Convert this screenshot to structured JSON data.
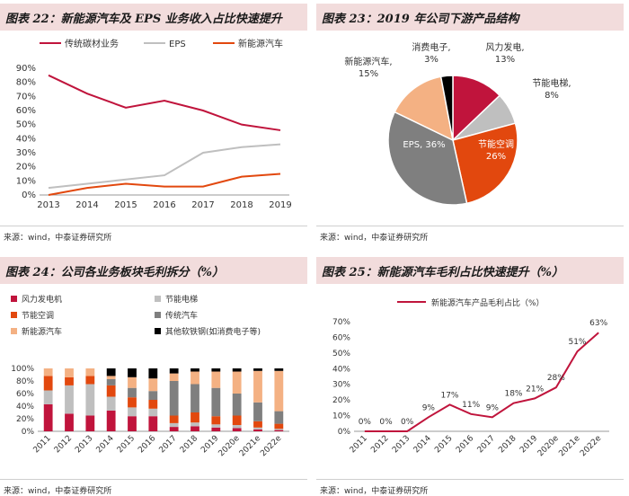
{
  "source_text": "来源：wind，中泰证券研究所",
  "charts": [
    {
      "title": "图表 22：新能源汽车及 EPS 业务收入占比快速提升",
      "chart_data": {
        "type": "line",
        "categories": [
          "2013",
          "2014",
          "2015",
          "2016",
          "2017",
          "2018",
          "2019"
        ],
        "ylim": [
          0,
          90
        ],
        "yticks": [
          "0%",
          "10%",
          "20%",
          "30%",
          "40%",
          "50%",
          "60%",
          "70%",
          "80%",
          "90%"
        ],
        "legend_position": "top",
        "series": [
          {
            "name": "传统碳材业务",
            "color": "#c0143c",
            "values": [
              85,
              72,
              62,
              67,
              60,
              50,
              46
            ]
          },
          {
            "name": "EPS",
            "color": "#bfbfbf",
            "values": [
              5,
              8,
              11,
              14,
              30,
              34,
              36
            ]
          },
          {
            "name": "新能源汽车",
            "color": "#e2480e",
            "values": [
              0,
              5,
              8,
              6,
              6,
              13,
              15
            ]
          }
        ]
      }
    },
    {
      "title": "图表 23：2019 年公司下游产品结构",
      "chart_data": {
        "type": "pie",
        "slices": [
          {
            "label": "风力发电",
            "value": 13,
            "display": "13%",
            "color": "#c0143c"
          },
          {
            "label": "节能电梯",
            "value": 8,
            "display": "8%",
            "color": "#bfbfbf"
          },
          {
            "label": "节能空调",
            "value": 26,
            "display": "26%",
            "color": "#e2480e"
          },
          {
            "label": "EPS",
            "value": 36,
            "display": "36%",
            "color": "#7f7f7f"
          },
          {
            "label": "新能源汽车",
            "value": 15,
            "display": "15%",
            "color": "#f4b183"
          },
          {
            "label": "消费电子",
            "value": 3,
            "display": "3%",
            "color": "#000000"
          }
        ]
      }
    },
    {
      "title": "图表 24：公司各业务板块毛利拆分（%）",
      "chart_data": {
        "type": "bar",
        "stacked": true,
        "categories": [
          "2011",
          "2012",
          "2013",
          "2014",
          "2015",
          "2016",
          "2017",
          "2018",
          "2019",
          "2020e",
          "2021e",
          "2022e"
        ],
        "ylim": [
          0,
          100
        ],
        "yticks": [
          "0%",
          "20%",
          "40%",
          "60%",
          "80%",
          "100%"
        ],
        "legend_position": "top",
        "series": [
          {
            "name": "风力发电机",
            "color": "#c0143c",
            "values": [
              43,
              28,
              25,
              33,
              24,
              24,
              7,
              8,
              6,
              5,
              3,
              2
            ]
          },
          {
            "name": "节能电梯",
            "color": "#bfbfbf",
            "values": [
              22,
              45,
              50,
              22,
              14,
              12,
              6,
              6,
              5,
              5,
              3,
              2
            ]
          },
          {
            "name": "节能空调",
            "color": "#e2480e",
            "values": [
              23,
              13,
              13,
              18,
              16,
              14,
              12,
              16,
              13,
              15,
              10,
              8
            ]
          },
          {
            "name": "传统汽车",
            "color": "#7f7f7f",
            "values": [
              0,
              0,
              0,
              10,
              15,
              14,
              55,
              45,
              45,
              35,
              30,
              20
            ]
          },
          {
            "name": "新能源汽车",
            "color": "#f4b183",
            "values": [
              12,
              14,
              12,
              5,
              17,
              20,
              12,
              20,
              26,
              35,
              50,
              64
            ]
          },
          {
            "name": "其他软铁钢(如消费电子等)",
            "color": "#000000",
            "values": [
              0,
              0,
              0,
              12,
              14,
              16,
              8,
              5,
              5,
              5,
              4,
              4
            ]
          }
        ]
      }
    },
    {
      "title": "图表 25：新能源汽车毛利占比快速提升（%）",
      "chart_data": {
        "type": "line",
        "categories": [
          "2011",
          "2012",
          "2013",
          "2014",
          "2015",
          "2016",
          "2017",
          "2018",
          "2019",
          "2020e",
          "2021e",
          "2022e"
        ],
        "ylim": [
          0,
          70
        ],
        "yticks": [
          "0%",
          "10%",
          "20%",
          "30%",
          "40%",
          "50%",
          "60%",
          "70%"
        ],
        "legend_position": "top",
        "series": [
          {
            "name": "新能源汽车产品毛利占比（%）",
            "color": "#c0143c",
            "values": [
              0,
              0,
              0,
              9,
              17,
              11,
              9,
              18,
              21,
              28,
              51,
              63
            ],
            "labels": [
              "0%",
              "0%",
              "0%",
              "9%",
              "17%",
              "11%",
              "9%",
              "18%",
              "21%",
              "28%",
              "51%",
              "63%"
            ]
          }
        ]
      }
    }
  ]
}
